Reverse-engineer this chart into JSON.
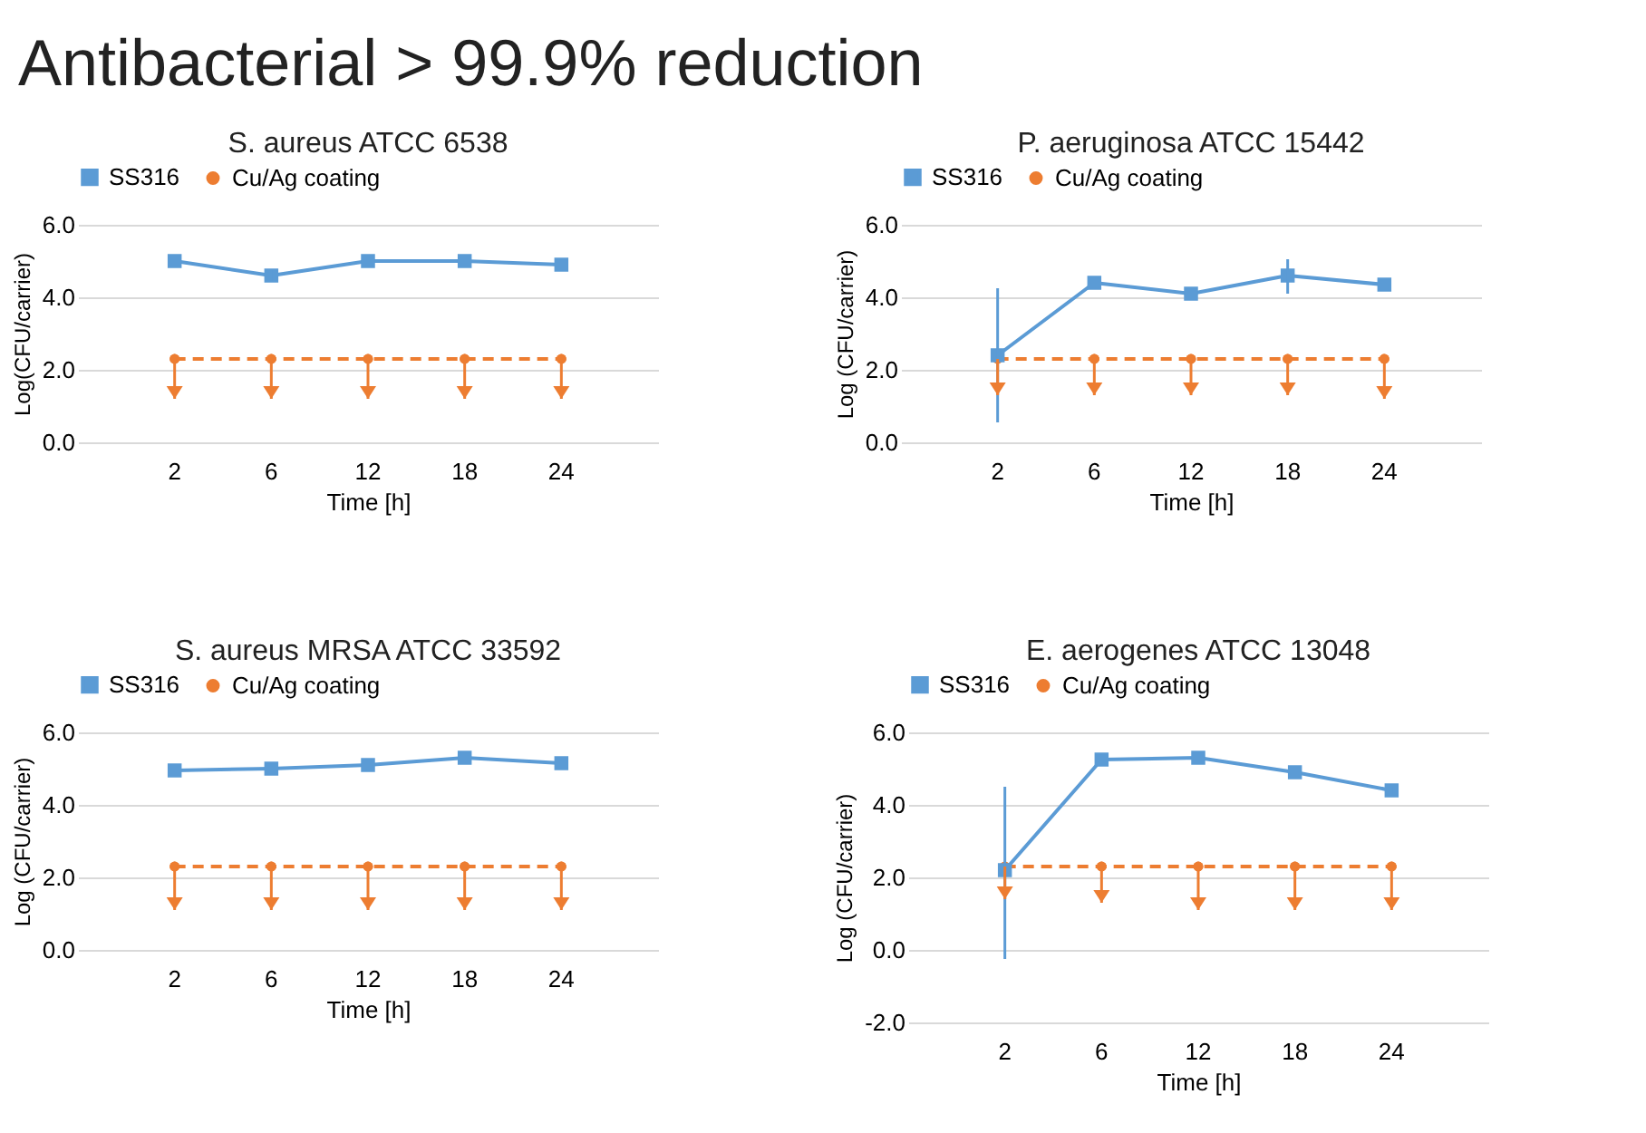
{
  "chart_data": [
    {
      "type": "other",
      "title": "Antibacterial > 99.9% reduction"
    },
    {
      "type": "line",
      "title": "S. aureus ATCC 6538",
      "xlabel": "Time [h]",
      "ylabel": "Log(CFU/carrier)",
      "categories": [
        "2",
        "6",
        "12",
        "18",
        "24"
      ],
      "ylim": [
        0,
        6
      ],
      "yticks": [
        {
          "value": 0,
          "label": "0.0"
        },
        {
          "value": 2,
          "label": "2.0"
        },
        {
          "value": 4,
          "label": "4.0"
        },
        {
          "value": 6,
          "label": "6.0"
        }
      ],
      "grid": "y",
      "legend": "top",
      "series": [
        {
          "name": "SS316",
          "color": "#5b9bd5",
          "marker": "square",
          "line_style": "solid",
          "values": [
            5.0,
            4.6,
            5.0,
            5.0,
            4.9
          ],
          "errors": [
            null,
            0.15,
            null,
            null,
            null
          ]
        },
        {
          "name": "Cu/Ag coating",
          "color": "#ed7d31",
          "marker": "circle",
          "line_style": "dashed",
          "values": [
            2.3,
            2.3,
            2.3,
            2.3,
            2.3
          ],
          "errors": [
            [
              1.2,
              2.3
            ],
            [
              1.2,
              2.3
            ],
            [
              1.2,
              2.3
            ],
            [
              1.2,
              2.3
            ],
            [
              1.2,
              2.3
            ]
          ]
        }
      ]
    },
    {
      "type": "line",
      "title": "P. aeruginosa ATCC 15442",
      "xlabel": "Time [h]",
      "ylabel": "Log (CFU/carrier)",
      "categories": [
        "2",
        "6",
        "12",
        "18",
        "24"
      ],
      "ylim": [
        0,
        6
      ],
      "yticks": [
        {
          "value": 0,
          "label": "0.0"
        },
        {
          "value": 2,
          "label": "2.0"
        },
        {
          "value": 4,
          "label": "4.0"
        },
        {
          "value": 6,
          "label": "6.0"
        }
      ],
      "grid": "y",
      "legend": "top",
      "series": [
        {
          "name": "SS316",
          "color": "#5b9bd5",
          "marker": "square",
          "line_style": "solid",
          "values": [
            2.4,
            4.4,
            4.1,
            4.6,
            4.35
          ],
          "errors": [
            [
              0.55,
              4.25
            ],
            null,
            null,
            [
              4.1,
              5.05
            ],
            null
          ]
        },
        {
          "name": "Cu/Ag coating",
          "color": "#ed7d31",
          "marker": "circle",
          "line_style": "dashed",
          "values": [
            2.3,
            2.3,
            2.3,
            2.3,
            2.3
          ],
          "errors": [
            [
              1.3,
              2.3
            ],
            [
              1.3,
              2.3
            ],
            [
              1.3,
              2.3
            ],
            [
              1.3,
              2.3
            ],
            [
              1.2,
              2.3
            ]
          ]
        }
      ]
    },
    {
      "type": "line",
      "title": "S. aureus MRSA ATCC 33592",
      "xlabel": "Time [h]",
      "ylabel": "Log (CFU/carrier)",
      "categories": [
        "2",
        "6",
        "12",
        "18",
        "24"
      ],
      "ylim": [
        0,
        6
      ],
      "yticks": [
        {
          "value": 0,
          "label": "0.0"
        },
        {
          "value": 2,
          "label": "2.0"
        },
        {
          "value": 4,
          "label": "4.0"
        },
        {
          "value": 6,
          "label": "6.0"
        }
      ],
      "grid": "y",
      "legend": "top",
      "series": [
        {
          "name": "SS316",
          "color": "#5b9bd5",
          "marker": "square",
          "line_style": "solid",
          "values": [
            4.95,
            5.0,
            5.1,
            5.3,
            5.15
          ]
        },
        {
          "name": "Cu/Ag coating",
          "color": "#ed7d31",
          "marker": "circle",
          "line_style": "dashed",
          "values": [
            2.3,
            2.3,
            2.3,
            2.3,
            2.3
          ],
          "errors": [
            [
              1.1,
              2.3
            ],
            [
              1.1,
              2.3
            ],
            [
              1.1,
              2.3
            ],
            [
              1.1,
              2.3
            ],
            [
              1.1,
              2.3
            ]
          ]
        }
      ]
    },
    {
      "type": "line",
      "title": "E. aerogenes ATCC 13048",
      "xlabel": "Time [h]",
      "ylabel": "Log (CFU/carrier)",
      "categories": [
        "2",
        "6",
        "12",
        "18",
        "24"
      ],
      "ylim": [
        -2,
        6
      ],
      "yticks": [
        {
          "value": -2,
          "label": "-2.0"
        },
        {
          "value": 0,
          "label": "0.0"
        },
        {
          "value": 2,
          "label": "2.0"
        },
        {
          "value": 4,
          "label": "4.0"
        },
        {
          "value": 6,
          "label": "6.0"
        }
      ],
      "grid": "y",
      "legend": "top",
      "series": [
        {
          "name": "SS316",
          "color": "#5b9bd5",
          "marker": "square",
          "line_style": "solid",
          "values": [
            2.2,
            5.25,
            5.3,
            4.9,
            4.4
          ],
          "errors": [
            [
              -0.25,
              4.5
            ],
            null,
            null,
            null,
            0.1
          ]
        },
        {
          "name": "Cu/Ag coating",
          "color": "#ed7d31",
          "marker": "circle",
          "line_style": "dashed",
          "values": [
            2.3,
            2.3,
            2.3,
            2.3,
            2.3
          ],
          "errors": [
            [
              1.4,
              2.3
            ],
            [
              1.3,
              2.3
            ],
            [
              1.1,
              2.3
            ],
            [
              1.1,
              2.3
            ],
            [
              1.1,
              2.3
            ]
          ]
        }
      ]
    }
  ]
}
